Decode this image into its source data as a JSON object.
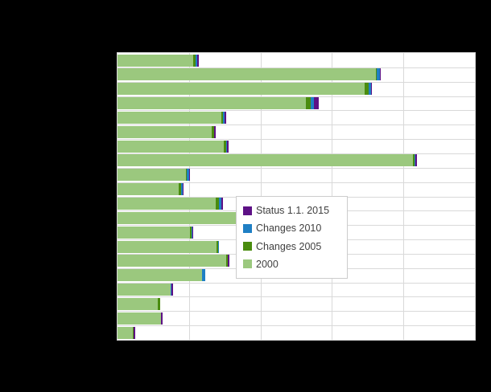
{
  "page": {
    "background_color": "#000000",
    "plot_background_color": "#ffffff",
    "gridline_color": "#d9d9d9",
    "title_visible": false,
    "category_labels_visible": false,
    "axis_tick_labels_visible": false
  },
  "legend": {
    "items": [
      {
        "label": "Status 1.1. 2015",
        "color": "#5e1186"
      },
      {
        "label": "Changes 2010",
        "color": "#1f7fc4"
      },
      {
        "label": "Changes 2005",
        "color": "#4a8c0f"
      },
      {
        "label": "2000",
        "color": "#9bc87e"
      }
    ]
  },
  "chart_data": {
    "type": "bar",
    "orientation": "horizontal",
    "stacked": true,
    "n_categories": 20,
    "categories": [
      "",
      "",
      "",
      "",
      "",
      "",
      "",
      "",
      "",
      "",
      "",
      "",
      "",
      "",
      "",
      "",
      "",
      "",
      "",
      ""
    ],
    "x_axis": {
      "min": 0,
      "max": 5,
      "gridlines": [
        1,
        2,
        3,
        4
      ],
      "note": "tick labels and category labels are not visible (black on black); values expressed in gridline units"
    },
    "series": [
      {
        "name": "2000",
        "color": "#9bc87e",
        "values": [
          1.054,
          3.61,
          3.453,
          2.634,
          1.457,
          1.323,
          1.491,
          4.137,
          0.953,
          0.852,
          1.379,
          1.794,
          1.009,
          1.39,
          1.525,
          1.188,
          0.74,
          0.561,
          0.605,
          0.213
        ]
      },
      {
        "name": "Changes 2005",
        "color": "#4a8c0f",
        "values": [
          0.034,
          0.011,
          0.056,
          0.067,
          0.022,
          0.028,
          0.034,
          0.022,
          0.011,
          0.034,
          0.045,
          0.034,
          0.022,
          0.017,
          0.022,
          0,
          0,
          0.034,
          0,
          0.008
        ]
      },
      {
        "name": "Changes 2010",
        "color": "#1f7fc4",
        "values": [
          0.022,
          0.045,
          0.034,
          0.045,
          0.022,
          0,
          0.011,
          0.011,
          0.034,
          0.022,
          0.034,
          0.011,
          0.011,
          0.017,
          0,
          0.045,
          0.011,
          0,
          0,
          0
        ]
      },
      {
        "name": "Status 1.1. 2015",
        "color": "#5e1186",
        "values": [
          0.022,
          0.022,
          0.011,
          0.067,
          0.022,
          0.022,
          0.022,
          0.022,
          0.011,
          0.011,
          0.022,
          0.022,
          0.022,
          0,
          0.022,
          0,
          0.022,
          0,
          0.022,
          0.022
        ]
      }
    ],
    "legend_position": "inside-bottom-right",
    "legend_order": [
      "Status 1.1. 2015",
      "Changes 2010",
      "Changes 2005",
      "2000"
    ]
  }
}
